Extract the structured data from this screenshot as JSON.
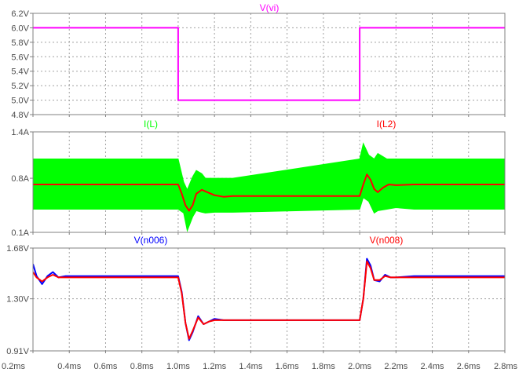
{
  "chart_data": [
    {
      "type": "line",
      "x_range": [
        0.2,
        2.8
      ],
      "ylim": [
        4.8,
        6.2
      ],
      "y_ticks": [
        "6.2V",
        "6.0V",
        "5.8V",
        "5.6V",
        "5.4V",
        "5.2V",
        "5.0V",
        "4.8V"
      ],
      "y_tick_values": [
        6.2,
        6.0,
        5.8,
        5.6,
        5.4,
        5.2,
        5.0,
        4.8
      ],
      "grid": true,
      "series": [
        {
          "name": "V(vi)",
          "color": "#ff00ff",
          "x": [
            0.2,
            1.0,
            1.0,
            2.0,
            2.0,
            2.8
          ],
          "y": [
            6.0,
            6.0,
            5.0,
            5.0,
            6.0,
            6.0
          ]
        }
      ]
    },
    {
      "type": "line",
      "x_range": [
        0.2,
        2.8
      ],
      "ylim": [
        0.1,
        1.4
      ],
      "y_ticks": [
        "1.4A",
        "0.8A",
        "0.1A"
      ],
      "y_tick_values": [
        1.4,
        0.8,
        0.1
      ],
      "grid": true,
      "series": [
        {
          "name": "I(L)",
          "color": "#00ff00",
          "envelope": {
            "x": [
              0.2,
              1.0,
              1.03,
              1.05,
              1.08,
              1.1,
              1.13,
              1.15,
              1.2,
              1.3,
              2.0,
              2.02,
              2.05,
              2.08,
              2.1,
              2.15,
              2.2,
              2.3,
              2.8
            ],
            "upper": [
              1.05,
              1.05,
              0.75,
              0.65,
              0.82,
              0.9,
              0.86,
              0.8,
              0.8,
              0.8,
              1.05,
              1.25,
              1.1,
              1.05,
              1.12,
              1.05,
              1.05,
              1.05,
              1.05
            ],
            "lower": [
              0.4,
              0.4,
              0.35,
              0.12,
              0.3,
              0.38,
              0.36,
              0.35,
              0.36,
              0.36,
              0.4,
              0.55,
              0.5,
              0.35,
              0.38,
              0.4,
              0.42,
              0.4,
              0.4
            ]
          }
        },
        {
          "name": "I(L2)",
          "color": "#ff0000",
          "x": [
            0.2,
            0.5,
            1.0,
            1.02,
            1.04,
            1.06,
            1.08,
            1.1,
            1.13,
            1.16,
            1.2,
            1.25,
            1.3,
            1.5,
            2.0,
            2.02,
            2.04,
            2.06,
            2.08,
            2.1,
            2.13,
            2.16,
            2.2,
            2.3,
            2.5,
            2.8
          ],
          "y": [
            0.72,
            0.72,
            0.72,
            0.6,
            0.45,
            0.38,
            0.45,
            0.6,
            0.65,
            0.62,
            0.58,
            0.56,
            0.57,
            0.57,
            0.57,
            0.72,
            0.85,
            0.78,
            0.66,
            0.62,
            0.68,
            0.72,
            0.71,
            0.72,
            0.72,
            0.72
          ]
        }
      ]
    },
    {
      "type": "line",
      "x_range": [
        0.2,
        2.8
      ],
      "ylim": [
        0.91,
        1.68
      ],
      "y_ticks": [
        "1.68V",
        "1.30V",
        "0.91V"
      ],
      "y_tick_values": [
        1.68,
        1.3,
        0.91
      ],
      "x_ticks": [
        "0.2ms",
        "0.4ms",
        "0.6ms",
        "0.8ms",
        "1.0ms",
        "1.2ms",
        "1.4ms",
        "1.6ms",
        "1.8ms",
        "2.0ms",
        "2.2ms",
        "2.4ms",
        "2.6ms",
        "2.8ms"
      ],
      "x_tick_values": [
        0.2,
        0.4,
        0.6,
        0.8,
        1.0,
        1.2,
        1.4,
        1.6,
        1.8,
        2.0,
        2.2,
        2.4,
        2.6,
        2.8
      ],
      "grid": true,
      "series": [
        {
          "name": "V(n006)",
          "color": "#0000ff",
          "x": [
            0.2,
            0.22,
            0.25,
            0.28,
            0.31,
            0.34,
            0.38,
            0.45,
            1.0,
            1.02,
            1.04,
            1.06,
            1.08,
            1.11,
            1.14,
            1.17,
            1.2,
            1.25,
            1.3,
            1.4,
            2.0,
            2.02,
            2.04,
            2.06,
            2.08,
            2.11,
            2.14,
            2.17,
            2.2,
            2.3,
            2.8
          ],
          "y": [
            1.56,
            1.47,
            1.41,
            1.47,
            1.5,
            1.46,
            1.47,
            1.47,
            1.47,
            1.35,
            1.12,
            0.99,
            1.05,
            1.17,
            1.11,
            1.13,
            1.15,
            1.14,
            1.14,
            1.14,
            1.14,
            1.3,
            1.6,
            1.55,
            1.44,
            1.43,
            1.48,
            1.46,
            1.46,
            1.47,
            1.47
          ]
        },
        {
          "name": "V(n008)",
          "color": "#ff0000",
          "x": [
            0.2,
            0.22,
            0.25,
            0.28,
            0.31,
            0.34,
            0.38,
            0.45,
            1.0,
            1.02,
            1.04,
            1.06,
            1.08,
            1.11,
            1.14,
            1.17,
            1.2,
            1.25,
            1.3,
            1.4,
            2.0,
            2.02,
            2.04,
            2.06,
            2.08,
            2.11,
            2.14,
            2.17,
            2.2,
            2.3,
            2.8
          ],
          "y": [
            1.5,
            1.46,
            1.43,
            1.46,
            1.48,
            1.46,
            1.46,
            1.46,
            1.46,
            1.34,
            1.12,
            1.0,
            1.06,
            1.16,
            1.11,
            1.13,
            1.14,
            1.14,
            1.14,
            1.14,
            1.14,
            1.3,
            1.58,
            1.53,
            1.44,
            1.44,
            1.47,
            1.46,
            1.46,
            1.46,
            1.46
          ]
        }
      ]
    }
  ]
}
